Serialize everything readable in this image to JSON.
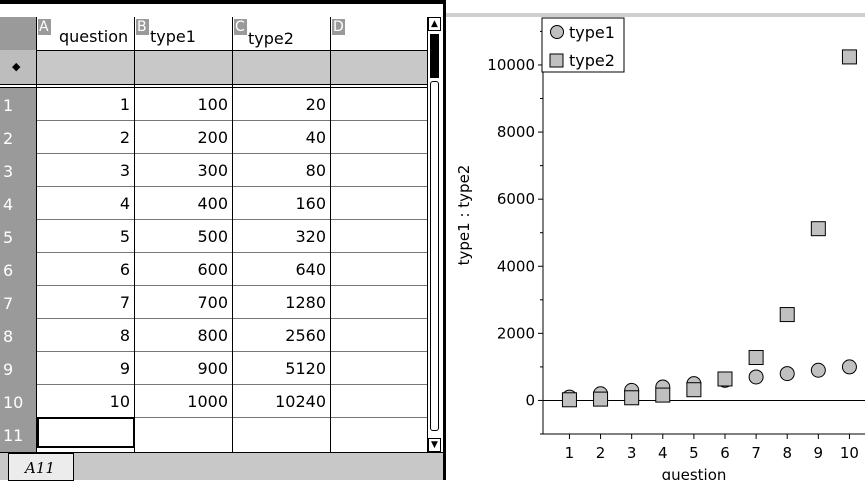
{
  "spreadsheet": {
    "columns": [
      {
        "letter": "A",
        "name": "question"
      },
      {
        "letter": "B",
        "name": "type1"
      },
      {
        "letter": "C",
        "name": "type2"
      },
      {
        "letter": "D",
        "name": ""
      }
    ],
    "formula_row_marker": "◆",
    "rows": [
      {
        "row": "1",
        "a": "1",
        "b": "100",
        "c": "20"
      },
      {
        "row": "2",
        "a": "2",
        "b": "200",
        "c": "40"
      },
      {
        "row": "3",
        "a": "3",
        "b": "300",
        "c": "80"
      },
      {
        "row": "4",
        "a": "4",
        "b": "400",
        "c": "160"
      },
      {
        "row": "5",
        "a": "5",
        "b": "500",
        "c": "320"
      },
      {
        "row": "6",
        "a": "6",
        "b": "600",
        "c": "640"
      },
      {
        "row": "7",
        "a": "7",
        "b": "700",
        "c": "1280"
      },
      {
        "row": "8",
        "a": "8",
        "b": "800",
        "c": "2560"
      },
      {
        "row": "9",
        "a": "9",
        "b": "900",
        "c": "5120"
      },
      {
        "row": "10",
        "a": "10",
        "b": "1000",
        "c": "10240"
      }
    ],
    "empty_row": "11",
    "cell_reference": "A11"
  },
  "chart_data": {
    "type": "scatter",
    "xlabel": "question",
    "ylabel": "type1 : type2",
    "x_ticks": [
      1,
      2,
      3,
      4,
      5,
      6,
      7,
      8,
      9,
      10
    ],
    "y_ticks": [
      0,
      2000,
      4000,
      6000,
      8000,
      10000
    ],
    "xlim": [
      0.15,
      10.5
    ],
    "ylim": [
      -1000,
      11400
    ],
    "legend_placement": "top-left",
    "series": [
      {
        "name": "type1",
        "marker": "circle",
        "color": "#c0c0c0",
        "x": [
          1,
          2,
          3,
          4,
          5,
          6,
          7,
          8,
          9,
          10
        ],
        "y": [
          100,
          200,
          300,
          400,
          500,
          600,
          700,
          800,
          900,
          1000
        ]
      },
      {
        "name": "type2",
        "marker": "square",
        "color": "#c0c0c0",
        "x": [
          1,
          2,
          3,
          4,
          5,
          6,
          7,
          8,
          9,
          10
        ],
        "y": [
          20,
          40,
          80,
          160,
          320,
          640,
          1280,
          2560,
          5120,
          10240
        ]
      }
    ]
  }
}
